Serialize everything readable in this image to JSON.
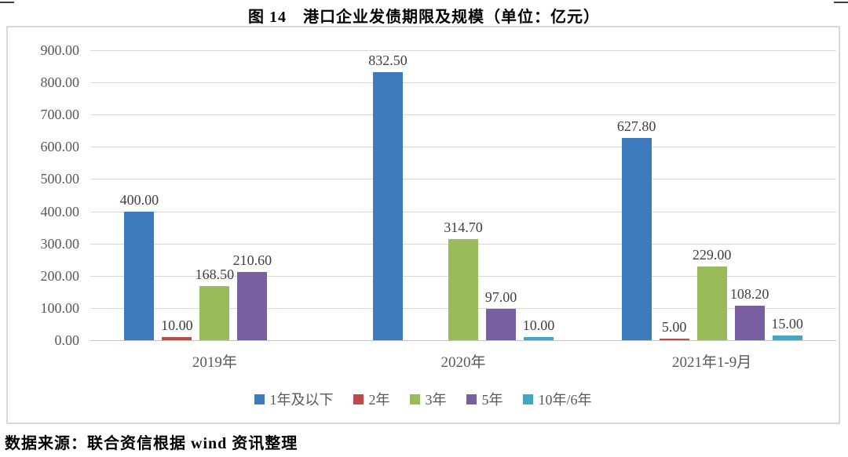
{
  "title": "图 14　港口企业发债期限及规模（单位：亿元）",
  "source": "数据来源：联合资信根据 wind 资讯整理",
  "chart_data": {
    "type": "bar",
    "title": "图 14 港口企业发债期限及规模（单位：亿元）",
    "unit": "亿元",
    "categories": [
      "2019年",
      "2020年",
      "2021年1-9月"
    ],
    "series": [
      {
        "name": "1年及以下",
        "color": "#3E7BBC",
        "values": [
          400.0,
          832.5,
          627.8
        ]
      },
      {
        "name": "2年",
        "color": "#BE4B48",
        "values": [
          10.0,
          null,
          5.0
        ]
      },
      {
        "name": "3年",
        "color": "#9ABB59",
        "values": [
          168.5,
          314.7,
          229.0
        ]
      },
      {
        "name": "5年",
        "color": "#7A5FA0",
        "values": [
          210.6,
          97.0,
          108.2
        ]
      },
      {
        "name": "10年/6年",
        "color": "#41A8C1",
        "values": [
          null,
          10.0,
          15.0
        ]
      }
    ],
    "ylim": [
      0,
      900
    ],
    "ytick_step": 100,
    "yticks": [
      "900.00",
      "800.00",
      "700.00",
      "600.00",
      "500.00",
      "400.00",
      "300.00",
      "200.00",
      "100.00",
      "0.00"
    ],
    "value_labels": true,
    "value_format": "2-decimals",
    "grid": true,
    "legend_position": "bottom",
    "colors": {
      "gridline": "#d9d9d9",
      "baseline": "#c3c3c3",
      "axis_text": "#595959",
      "value_label_text": "#404040",
      "chart_border": "#d9d9d9",
      "title_text": "#000000"
    }
  }
}
